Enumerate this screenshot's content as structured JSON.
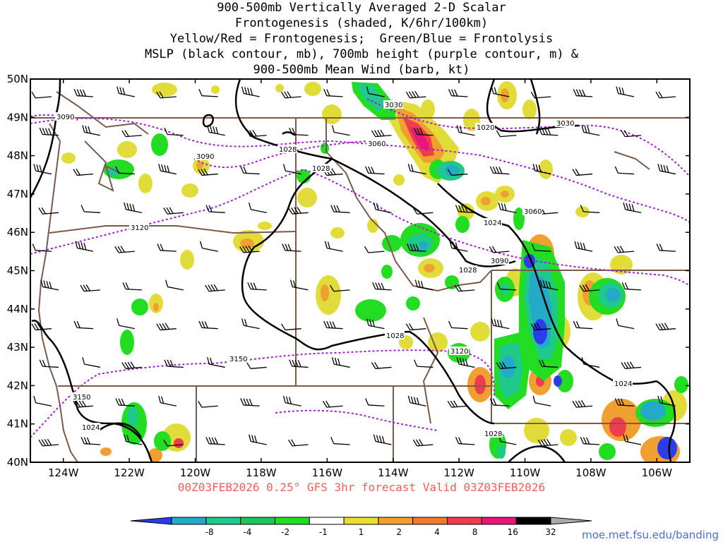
{
  "title": {
    "line1": "900-500mb Vertically Averaged 2-D Scalar",
    "line2": "Frontogenesis (shaded, K/6hr/100km)",
    "line3": "Yellow/Red = Frontogenesis;  Green/Blue = Frontolysis",
    "line4": "MSLP (black contour, mb), 700mb height (purple contour, m) &",
    "line5": "900-500mb Mean Wind (barb, kt)"
  },
  "footer": "00Z03FEB2026 0.25° GFS 3hr forecast Valid 03Z03FEB2026",
  "credit": "moe.met.fsu.edu/banding",
  "map": {
    "lon_range": [
      -125,
      -105
    ],
    "lat_range": [
      40,
      50
    ],
    "lat_labels": [
      "50N",
      "49N",
      "48N",
      "47N",
      "46N",
      "45N",
      "44N",
      "43N",
      "42N",
      "41N",
      "40N"
    ],
    "lon_labels": [
      "124W",
      "122W",
      "120W",
      "118W",
      "116W",
      "114W",
      "112W",
      "110W",
      "108W",
      "106W"
    ],
    "mslp_labels": [
      "1028",
      "1028",
      "1020",
      "1024",
      "1028",
      "1028",
      "1028",
      "1024",
      "1024"
    ],
    "height_labels": [
      "3090",
      "3090",
      "3060",
      "3030",
      "3030",
      "3060",
      "3090",
      "3120",
      "3150",
      "3150",
      "3120"
    ]
  },
  "colorbar": {
    "labels": [
      "-8",
      "-4",
      "-2",
      "-1",
      "1",
      "2",
      "4",
      "8",
      "16",
      "32"
    ],
    "colors": [
      "#2b3de8",
      "#22aac8",
      "#1fc98a",
      "#1fc45a",
      "#22dd22",
      "#ffffff",
      "#e8e030",
      "#f0a030",
      "#f07a30",
      "#f03c50",
      "#e8157a",
      "#000000",
      "#aaaaaa"
    ]
  },
  "colors": {
    "mslp": "#000000",
    "height": "#a020d0",
    "borders": "#7a5a4a",
    "frontogenesis_weak": "#e2dc3a",
    "frontogenesis_mod": "#f0a030",
    "frontogenesis_strong": "#f03c50",
    "frontogenesis_max": "#e8157a",
    "frontolysis_weak": "#22dd22",
    "frontolysis_mod": "#1fc98a",
    "frontolysis_strong": "#22aac8",
    "frontolysis_max": "#2b3de8"
  }
}
